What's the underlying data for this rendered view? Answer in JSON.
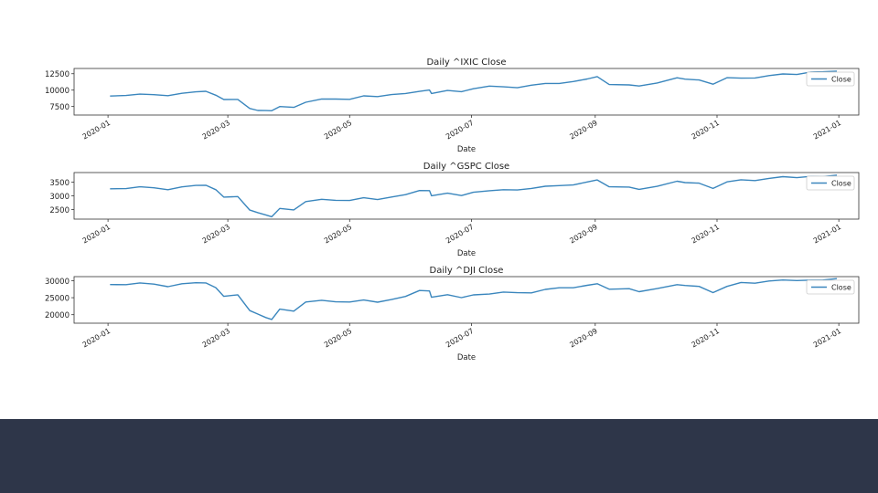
{
  "footer": {
    "color": "#2e3649"
  },
  "line_color": "#3a86bd",
  "chart_data": [
    {
      "type": "line",
      "title": "Daily ^IXIC Close",
      "xlabel": "Date",
      "ylabel": "",
      "legend": {
        "entries": [
          "Close"
        ],
        "placement": "right"
      },
      "xlim": [
        "2019-12-15",
        "2021-01-11"
      ],
      "ylim": [
        6200,
        13300
      ],
      "yticks": [
        7500,
        10000,
        12500
      ],
      "yticklabels": [
        "7500",
        "10000",
        "12500"
      ],
      "xticks": [
        "2020-01-01",
        "2020-03-01",
        "2020-05-01",
        "2020-07-01",
        "2020-09-01",
        "2020-11-01",
        "2021-01-01"
      ],
      "xticklabels": [
        "2020-01",
        "2020-03",
        "2020-05",
        "2020-07",
        "2020-09",
        "2020-11",
        "2021-01"
      ],
      "grid": false,
      "series": [
        {
          "name": "Close",
          "x": [
            "2020-01-02",
            "2020-01-10",
            "2020-01-17",
            "2020-01-24",
            "2020-01-31",
            "2020-02-07",
            "2020-02-14",
            "2020-02-19",
            "2020-02-24",
            "2020-02-28",
            "2020-03-06",
            "2020-03-12",
            "2020-03-16",
            "2020-03-20",
            "2020-03-23",
            "2020-03-27",
            "2020-04-03",
            "2020-04-09",
            "2020-04-17",
            "2020-04-24",
            "2020-05-01",
            "2020-05-08",
            "2020-05-15",
            "2020-05-22",
            "2020-05-29",
            "2020-06-05",
            "2020-06-10",
            "2020-06-11",
            "2020-06-19",
            "2020-06-26",
            "2020-07-02",
            "2020-07-10",
            "2020-07-17",
            "2020-07-24",
            "2020-07-31",
            "2020-08-07",
            "2020-08-14",
            "2020-08-21",
            "2020-08-28",
            "2020-09-02",
            "2020-09-08",
            "2020-09-18",
            "2020-09-23",
            "2020-10-02",
            "2020-10-12",
            "2020-10-16",
            "2020-10-23",
            "2020-10-30",
            "2020-11-06",
            "2020-11-13",
            "2020-11-20",
            "2020-11-27",
            "2020-12-04",
            "2020-12-11",
            "2020-12-18",
            "2020-12-24",
            "2020-12-31"
          ],
          "y": [
            9090,
            9180,
            9390,
            9310,
            9150,
            9520,
            9730,
            9820,
            9220,
            8570,
            8580,
            7200,
            6900,
            6880,
            6860,
            7500,
            7370,
            8150,
            8650,
            8630,
            8600,
            9120,
            9010,
            9320,
            9490,
            9810,
            10020,
            9490,
            9950,
            9760,
            10210,
            10620,
            10500,
            10360,
            10750,
            11010,
            11020,
            11310,
            11700,
            12060,
            10850,
            10790,
            10630,
            11080,
            11880,
            11670,
            11550,
            10910,
            11900,
            11830,
            11850,
            12210,
            12460,
            12380,
            12760,
            12800,
            12890
          ]
        }
      ]
    },
    {
      "type": "line",
      "title": "Daily ^GSPC Close",
      "xlabel": "Date",
      "ylabel": "",
      "legend": {
        "entries": [
          "Close"
        ],
        "placement": "right"
      },
      "xlim": [
        "2019-12-15",
        "2021-01-11"
      ],
      "ylim": [
        2150,
        3850
      ],
      "yticks": [
        2500,
        3000,
        3500
      ],
      "yticklabels": [
        "2500",
        "3000",
        "3500"
      ],
      "xticks": [
        "2020-01-01",
        "2020-03-01",
        "2020-05-01",
        "2020-07-01",
        "2020-09-01",
        "2020-11-01",
        "2021-01-01"
      ],
      "xticklabels": [
        "2020-01",
        "2020-03",
        "2020-05",
        "2020-07",
        "2020-09",
        "2020-11",
        "2021-01"
      ],
      "grid": false,
      "series": [
        {
          "name": "Close",
          "x": [
            "2020-01-02",
            "2020-01-10",
            "2020-01-17",
            "2020-01-24",
            "2020-01-31",
            "2020-02-07",
            "2020-02-14",
            "2020-02-19",
            "2020-02-24",
            "2020-02-28",
            "2020-03-06",
            "2020-03-12",
            "2020-03-16",
            "2020-03-20",
            "2020-03-23",
            "2020-03-27",
            "2020-04-03",
            "2020-04-09",
            "2020-04-17",
            "2020-04-24",
            "2020-05-01",
            "2020-05-08",
            "2020-05-15",
            "2020-05-22",
            "2020-05-29",
            "2020-06-05",
            "2020-06-10",
            "2020-06-11",
            "2020-06-19",
            "2020-06-26",
            "2020-07-02",
            "2020-07-10",
            "2020-07-17",
            "2020-07-24",
            "2020-07-31",
            "2020-08-07",
            "2020-08-14",
            "2020-08-21",
            "2020-08-28",
            "2020-09-02",
            "2020-09-08",
            "2020-09-18",
            "2020-09-23",
            "2020-10-02",
            "2020-10-12",
            "2020-10-16",
            "2020-10-23",
            "2020-10-30",
            "2020-11-06",
            "2020-11-13",
            "2020-11-20",
            "2020-11-27",
            "2020-12-04",
            "2020-12-11",
            "2020-12-18",
            "2020-12-24",
            "2020-12-31"
          ],
          "y": [
            3257,
            3265,
            3329,
            3295,
            3225,
            3327,
            3380,
            3386,
            3225,
            2954,
            2972,
            2480,
            2386,
            2304,
            2237,
            2541,
            2488,
            2789,
            2874,
            2836,
            2830,
            2929,
            2863,
            2955,
            3044,
            3193,
            3190,
            3002,
            3097,
            3009,
            3130,
            3185,
            3224,
            3215,
            3271,
            3351,
            3372,
            3397,
            3508,
            3580,
            3331,
            3319,
            3237,
            3348,
            3534,
            3483,
            3465,
            3270,
            3509,
            3585,
            3557,
            3638,
            3699,
            3663,
            3709,
            3703,
            3756
          ]
        }
      ]
    },
    {
      "type": "line",
      "title": "Daily ^DJI Close",
      "xlabel": "Date",
      "ylabel": "",
      "legend": {
        "entries": [
          "Close"
        ],
        "placement": "right"
      },
      "xlim": [
        "2019-12-15",
        "2021-01-11"
      ],
      "ylim": [
        17500,
        31200
      ],
      "yticks": [
        20000,
        25000,
        30000
      ],
      "yticklabels": [
        "20000",
        "25000",
        "30000"
      ],
      "xticks": [
        "2020-01-01",
        "2020-03-01",
        "2020-05-01",
        "2020-07-01",
        "2020-09-01",
        "2020-11-01",
        "2021-01-01"
      ],
      "xticklabels": [
        "2020-01",
        "2020-03",
        "2020-05",
        "2020-07",
        "2020-09",
        "2020-11",
        "2021-01"
      ],
      "grid": false,
      "series": [
        {
          "name": "Close",
          "x": [
            "2020-01-02",
            "2020-01-10",
            "2020-01-17",
            "2020-01-24",
            "2020-01-31",
            "2020-02-07",
            "2020-02-14",
            "2020-02-19",
            "2020-02-24",
            "2020-02-28",
            "2020-03-06",
            "2020-03-12",
            "2020-03-16",
            "2020-03-20",
            "2020-03-23",
            "2020-03-27",
            "2020-04-03",
            "2020-04-09",
            "2020-04-17",
            "2020-04-24",
            "2020-05-01",
            "2020-05-08",
            "2020-05-15",
            "2020-05-22",
            "2020-05-29",
            "2020-06-05",
            "2020-06-10",
            "2020-06-11",
            "2020-06-19",
            "2020-06-26",
            "2020-07-02",
            "2020-07-10",
            "2020-07-17",
            "2020-07-24",
            "2020-07-31",
            "2020-08-07",
            "2020-08-14",
            "2020-08-21",
            "2020-08-28",
            "2020-09-02",
            "2020-09-08",
            "2020-09-18",
            "2020-09-23",
            "2020-10-02",
            "2020-10-12",
            "2020-10-16",
            "2020-10-23",
            "2020-10-30",
            "2020-11-06",
            "2020-11-13",
            "2020-11-20",
            "2020-11-27",
            "2020-12-04",
            "2020-12-11",
            "2020-12-18",
            "2020-12-24",
            "2020-12-31"
          ],
          "y": [
            28868,
            28823,
            29348,
            28990,
            28256,
            29102,
            29398,
            29348,
            27961,
            25409,
            25865,
            21200,
            20189,
            19174,
            18592,
            21637,
            21052,
            23719,
            24242,
            23775,
            23724,
            24331,
            23685,
            24465,
            25383,
            27111,
            26990,
            25128,
            25871,
            25016,
            25827,
            26075,
            26672,
            26470,
            26428,
            27433,
            27931,
            27930,
            28654,
            29100,
            27500,
            27657,
            26763,
            27683,
            28838,
            28606,
            28336,
            26502,
            28323,
            29480,
            29263,
            29910,
            30218,
            30046,
            30179,
            30200,
            30606
          ]
        }
      ]
    }
  ]
}
